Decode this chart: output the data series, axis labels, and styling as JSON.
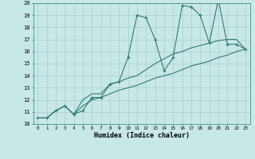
{
  "xlabel": "Humidex (Indice chaleur)",
  "x_values": [
    0,
    1,
    2,
    3,
    4,
    5,
    6,
    7,
    8,
    9,
    10,
    11,
    12,
    13,
    14,
    15,
    16,
    17,
    18,
    19,
    20,
    21,
    22,
    23
  ],
  "line1_y": [
    10.5,
    10.5,
    11.1,
    11.5,
    10.8,
    11.1,
    12.2,
    12.2,
    13.3,
    13.5,
    15.5,
    19.0,
    18.8,
    17.0,
    14.4,
    15.5,
    19.8,
    19.7,
    19.0,
    16.7,
    20.3,
    16.6,
    16.6,
    16.2
  ],
  "line2_y": [
    10.5,
    10.5,
    11.1,
    11.5,
    10.8,
    12.0,
    12.5,
    12.5,
    13.3,
    13.5,
    13.8,
    14.0,
    14.5,
    15.0,
    15.4,
    15.8,
    16.0,
    16.3,
    16.5,
    16.7,
    16.9,
    17.0,
    17.0,
    16.2
  ],
  "line3_y": [
    10.5,
    10.5,
    11.1,
    11.5,
    10.8,
    11.5,
    12.0,
    12.2,
    12.5,
    12.8,
    13.0,
    13.2,
    13.5,
    13.8,
    14.0,
    14.2,
    14.5,
    14.8,
    15.0,
    15.2,
    15.5,
    15.7,
    16.0,
    16.2
  ],
  "line_color": "#2d7d6e",
  "bg_color": "#c8e8e8",
  "grid_color": "#a8cccc",
  "ylim": [
    10,
    20
  ],
  "xlim": [
    -0.5,
    23.5
  ]
}
